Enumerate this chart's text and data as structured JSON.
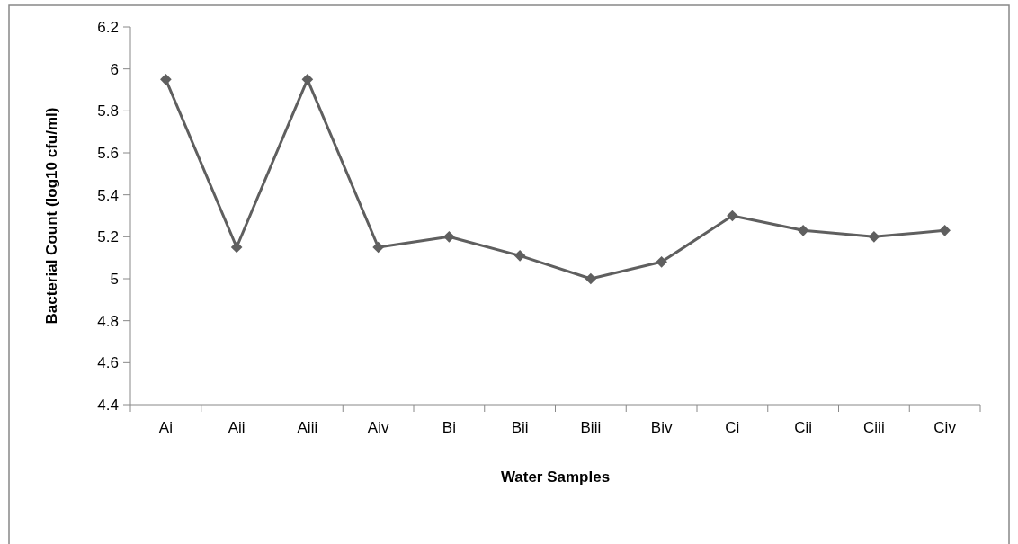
{
  "chart_data": {
    "type": "line",
    "xlabel": "Water Samples",
    "ylabel": "Bacterial Count (log10 cfu/ml)",
    "categories": [
      "Ai",
      "Aii",
      "Aiii",
      "Aiv",
      "Bi",
      "Bii",
      "Biii",
      "Biv",
      "Ci",
      "Cii",
      "Ciii",
      "Civ"
    ],
    "series": [
      {
        "color": "#5f5f5f",
        "values": [
          5.95,
          5.15,
          5.95,
          5.15,
          5.2,
          5.11,
          5.0,
          5.08,
          5.3,
          5.23,
          5.2,
          5.23
        ]
      }
    ],
    "ylim": [
      4.4,
      6.2
    ],
    "yticks": [
      4.4,
      4.6,
      4.8,
      5,
      5.2,
      5.4,
      5.6,
      5.8,
      6,
      6.2
    ],
    "grid": false,
    "marker": "diamond",
    "line_style": "solid"
  }
}
